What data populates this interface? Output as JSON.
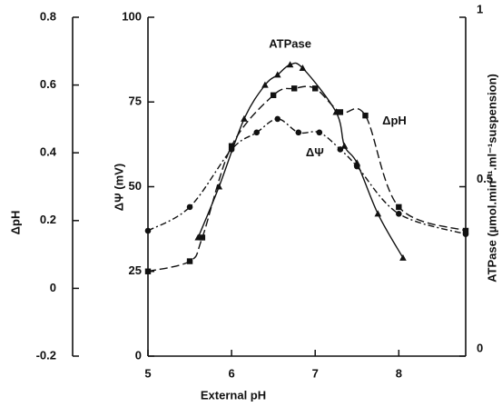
{
  "chart_data": {
    "type": "line",
    "xlabel": "External pH",
    "ylabel": "ΔΨ (mV)",
    "y2label": "ATPase (µmol.min⁻¹.ml⁻¹suspension)",
    "y3label": "ΔpH",
    "xlim": [
      5,
      8.8
    ],
    "xticks": [
      5,
      6,
      7,
      8
    ],
    "ylim": [
      0,
      100
    ],
    "yticks": [
      0,
      25,
      50,
      75,
      100
    ],
    "y2lim": [
      0,
      1
    ],
    "y2ticks": [
      0,
      0.5,
      1
    ],
    "y3lim": [
      -0.2,
      0.8
    ],
    "y3ticks": [
      0.8,
      0.6,
      0.4,
      0.2,
      0,
      -0.2
    ],
    "color": "#111111",
    "series": [
      {
        "name": "ATPase",
        "axis": "y2",
        "marker": "triangle",
        "dash": "solid",
        "x": [
          5.6,
          5.85,
          6.15,
          6.4,
          6.55,
          6.7,
          6.85,
          7.25,
          7.35,
          7.5,
          7.75,
          8.05
        ],
        "values": [
          0.35,
          0.5,
          0.7,
          0.8,
          0.83,
          0.86,
          0.85,
          0.72,
          0.62,
          0.57,
          0.42,
          0.29
        ]
      },
      {
        "name": "ΔpH",
        "axis": "y3",
        "marker": "square",
        "dash": "long",
        "x": [
          5,
          5.5,
          5.65,
          6,
          6.5,
          6.75,
          7,
          7.3,
          7.6,
          8,
          8.8
        ],
        "values": [
          0.05,
          0.08,
          0.15,
          0.42,
          0.57,
          0.59,
          0.59,
          0.52,
          0.51,
          0.24,
          0.17
        ]
      },
      {
        "name": "ΔΨ",
        "axis": "y",
        "marker": "circle",
        "dash": "dashdot",
        "x": [
          5,
          5.5,
          6,
          6.3,
          6.55,
          6.8,
          7.05,
          7.3,
          7.5,
          8,
          8.8
        ],
        "values": [
          37,
          44,
          61,
          66,
          70,
          66,
          66,
          61,
          56,
          42,
          36
        ]
      }
    ]
  }
}
